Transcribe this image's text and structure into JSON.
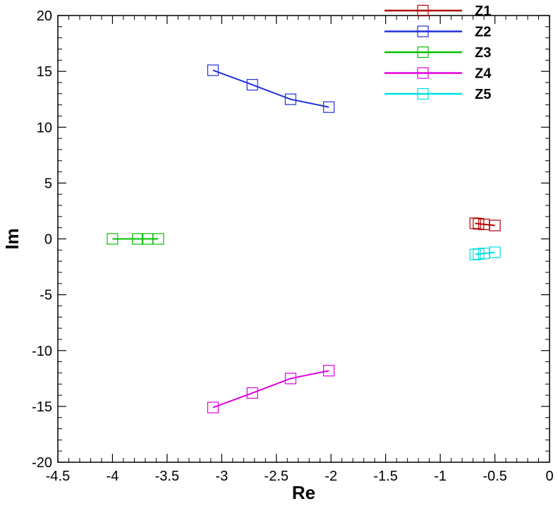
{
  "chart_data": {
    "type": "line",
    "xlabel": "Re",
    "ylabel": "Im",
    "xlim": [
      -4.5,
      0
    ],
    "ylim": [
      -20,
      20
    ],
    "x_ticks": [
      -4.5,
      -4,
      -3.5,
      -3,
      -2.5,
      -2,
      -1.5,
      -1,
      -0.5,
      0
    ],
    "y_ticks": [
      -20,
      -15,
      -10,
      -5,
      0,
      5,
      10,
      15,
      20
    ],
    "x_tick_labels": [
      "-4.5",
      "-4",
      "-3.5",
      "-3",
      "-2.5",
      "-2",
      "-1.5",
      "-1",
      "-0.5",
      "0"
    ],
    "y_tick_labels": [
      "-20",
      "-15",
      "-10",
      "-5",
      "0",
      "5",
      "10",
      "15",
      "20"
    ],
    "grid": false,
    "legend_position": "top-right",
    "marker": "square-open",
    "series": [
      {
        "name": "Z1",
        "color": "#b00000",
        "points": [
          [
            -0.68,
            1.4
          ],
          [
            -0.65,
            1.35
          ],
          [
            -0.6,
            1.3
          ],
          [
            -0.5,
            1.2
          ]
        ]
      },
      {
        "name": "Z2",
        "color": "#2030e0",
        "points": [
          [
            -3.08,
            15.1
          ],
          [
            -2.72,
            13.8
          ],
          [
            -2.37,
            12.5
          ],
          [
            -2.02,
            11.8
          ]
        ]
      },
      {
        "name": "Z3",
        "color": "#00c000",
        "points": [
          [
            -4.0,
            0.0
          ],
          [
            -3.77,
            0.0
          ],
          [
            -3.68,
            0.0
          ],
          [
            -3.58,
            0.0
          ]
        ]
      },
      {
        "name": "Z4",
        "color": "#e000e0",
        "points": [
          [
            -3.08,
            -15.1
          ],
          [
            -2.72,
            -13.8
          ],
          [
            -2.37,
            -12.5
          ],
          [
            -2.02,
            -11.8
          ]
        ]
      },
      {
        "name": "Z5",
        "color": "#00e0e0",
        "points": [
          [
            -0.68,
            -1.4
          ],
          [
            -0.65,
            -1.35
          ],
          [
            -0.6,
            -1.3
          ],
          [
            -0.5,
            -1.2
          ]
        ]
      }
    ]
  }
}
